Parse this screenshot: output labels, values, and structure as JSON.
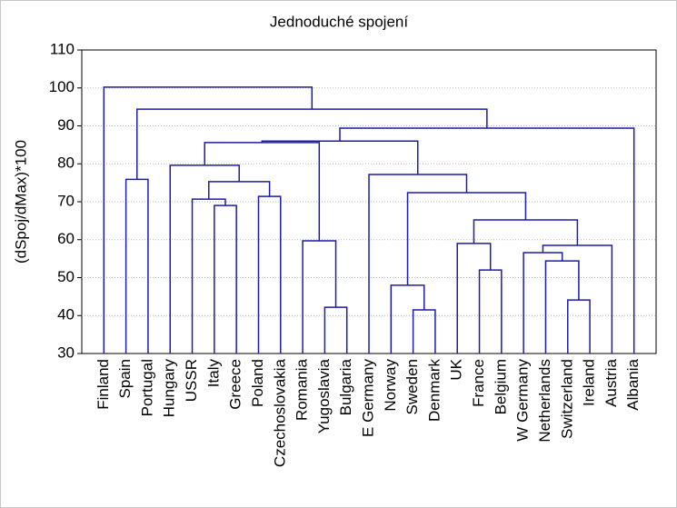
{
  "chart_data": {
    "type": "dendrogram",
    "title": "Jednoduché spojení",
    "y_label": "(dSpoj/dMax)*100",
    "ylim": [
      30,
      110
    ],
    "yticks": [
      30,
      40,
      50,
      60,
      70,
      80,
      90,
      100,
      110
    ],
    "grid": true,
    "color": "#1c1ca8",
    "tree": {
      "height": 100.2,
      "children": [
        "Finland",
        {
          "height": 94.4,
          "children": [
            {
              "height": 75.9,
              "children": [
                "Spain",
                "Portugal"
              ]
            },
            {
              "height": 89.4,
              "children": [
                {
                  "height": 86.0,
                  "children": [
                    {
                      "height": 85.6,
                      "children": [
                        {
                          "height": 79.6,
                          "children": [
                            "Hungary",
                            {
                              "height": 75.3,
                              "children": [
                                {
                                  "height": 70.7,
                                  "children": [
                                    "USSR",
                                    {
                                      "height": 69.0,
                                      "children": [
                                        "Italy",
                                        "Greece"
                                      ]
                                    }
                                  ]
                                },
                                {
                                  "height": 71.4,
                                  "children": [
                                    "Poland",
                                    "Czechoslovakia"
                                  ]
                                }
                              ]
                            }
                          ]
                        },
                        {
                          "height": 59.7,
                          "children": [
                            "Romania",
                            {
                              "height": 42.2,
                              "children": [
                                "Yugoslavia",
                                "Bulgaria"
                              ]
                            }
                          ]
                        }
                      ]
                    },
                    {
                      "height": 77.2,
                      "children": [
                        "E Germany",
                        {
                          "height": 72.4,
                          "children": [
                            {
                              "height": 48.0,
                              "children": [
                                "Norway",
                                {
                                  "height": 41.5,
                                  "children": [
                                    "Sweden",
                                    "Denmark"
                                  ]
                                }
                              ]
                            },
                            {
                              "height": 65.2,
                              "children": [
                                {
                                  "height": 59.0,
                                  "children": [
                                    "UK",
                                    {
                                      "height": 52.0,
                                      "children": [
                                        "France",
                                        "Belgium"
                                      ]
                                    }
                                  ]
                                },
                                {
                                  "height": 58.5,
                                  "children": [
                                    {
                                      "height": 56.6,
                                      "children": [
                                        "W Germany",
                                        {
                                          "height": 54.4,
                                          "children": [
                                            "Netherlands",
                                            {
                                              "height": 44.1,
                                              "children": [
                                                "Switzerland",
                                                "Ireland"
                                              ]
                                            }
                                          ]
                                        }
                                      ]
                                    },
                                    "Austria"
                                  ]
                                }
                              ]
                            }
                          ]
                        }
                      ]
                    }
                  ]
                },
                "Albania"
              ]
            }
          ]
        }
      ]
    }
  }
}
